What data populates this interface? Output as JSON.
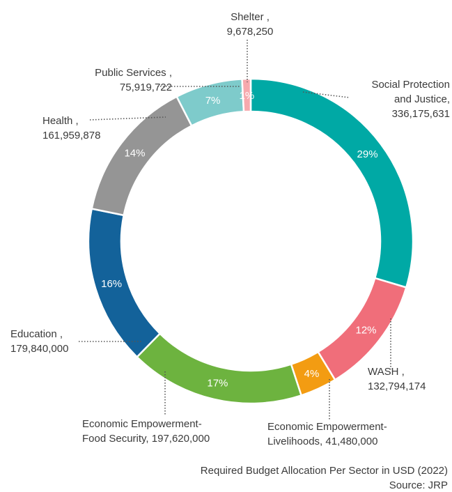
{
  "chart_data": {
    "type": "pie",
    "variant": "donut",
    "slices": [
      {
        "name": "Social Protection and Justice",
        "label_lines": [
          "Social Protection",
          "and Justice,",
          "336,175,631"
        ],
        "value": 336175631,
        "pct_label": "29%",
        "color": "#00a9a5"
      },
      {
        "name": "WASH",
        "label_lines": [
          "WASH ,",
          "132,794,174"
        ],
        "value": 132794174,
        "pct_label": "12%",
        "color": "#f06e7a"
      },
      {
        "name": "Economic Empowerment-Livelihoods",
        "label_lines": [
          "Economic Empowerment-",
          "Livelihoods, 41,480,000"
        ],
        "value": 41480000,
        "pct_label": "4%",
        "color": "#f39c12"
      },
      {
        "name": "Economic Empowerment-Food Security",
        "label_lines": [
          "Economic Empowerment-",
          "Food Security, 197,620,000"
        ],
        "value": 197620000,
        "pct_label": "17%",
        "color": "#6db33f"
      },
      {
        "name": "Education",
        "label_lines": [
          "Education ,",
          "179,840,000"
        ],
        "value": 179840000,
        "pct_label": "16%",
        "color": "#13629a"
      },
      {
        "name": "Health",
        "label_lines": [
          "Health ,",
          "161,959,878"
        ],
        "value": 161959878,
        "pct_label": "14%",
        "color": "#959595"
      },
      {
        "name": "Public Services",
        "label_lines": [
          "Public Services ,",
          "75,919,722"
        ],
        "value": 75919722,
        "pct_label": "7%",
        "color": "#7ecbcb"
      },
      {
        "name": "Shelter",
        "label_lines": [
          "Shelter ,",
          "9,678,250"
        ],
        "value": 9678250,
        "pct_label": "1%",
        "color": "#f6a9ad"
      }
    ]
  },
  "caption": {
    "title": "Required Budget Allocation Per Sector in USD (2022)",
    "source": "Source: JRP"
  }
}
